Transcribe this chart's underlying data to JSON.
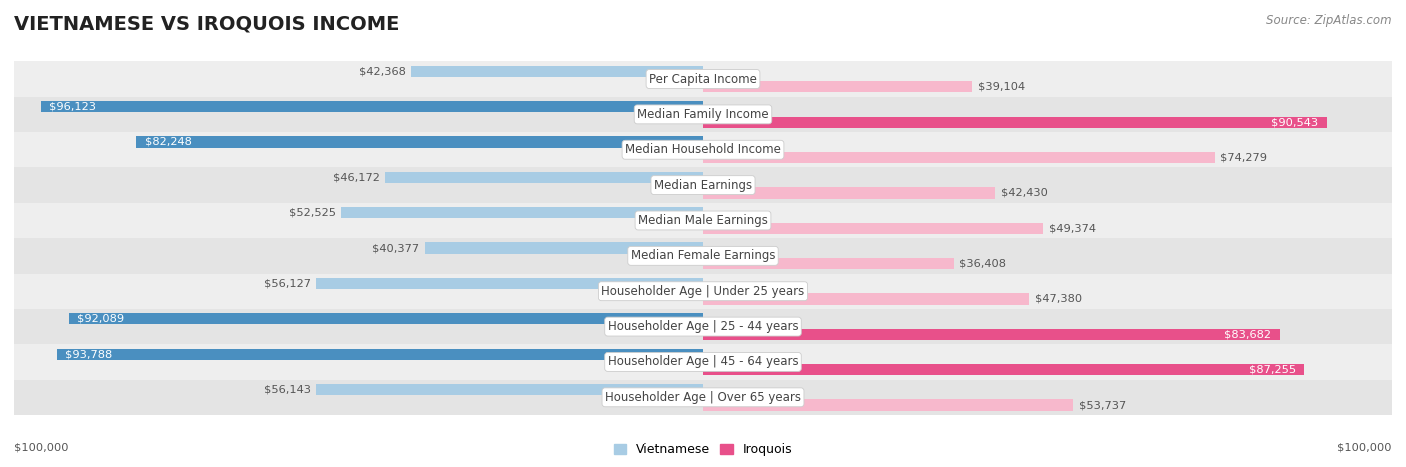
{
  "title": "VIETNAMESE VS IROQUOIS INCOME",
  "source": "Source: ZipAtlas.com",
  "categories": [
    "Per Capita Income",
    "Median Family Income",
    "Median Household Income",
    "Median Earnings",
    "Median Male Earnings",
    "Median Female Earnings",
    "Householder Age | Under 25 years",
    "Householder Age | 25 - 44 years",
    "Householder Age | 45 - 64 years",
    "Householder Age | Over 65 years"
  ],
  "vietnamese": [
    42368,
    96123,
    82248,
    46172,
    52525,
    40377,
    56127,
    92089,
    93788,
    56143
  ],
  "iroquois": [
    39104,
    90543,
    74279,
    42430,
    49374,
    36408,
    47380,
    83682,
    87255,
    53737
  ],
  "max_value": 100000,
  "viet_color_light": "#a8cce4",
  "viet_color_dark": "#4a8fc0",
  "iroq_color_light": "#f7b8cc",
  "iroq_color_dark": "#e8508a",
  "row_color_odd": "#eeeeee",
  "row_color_even": "#e4e4e4",
  "xlabel_left": "$100,000",
  "xlabel_right": "$100,000",
  "legend_vietnamese": "Vietnamese",
  "legend_iroquois": "Iroquois",
  "title_fontsize": 14,
  "cat_fontsize": 8.5,
  "val_fontsize": 8.2,
  "source_fontsize": 8.5,
  "legend_fontsize": 9
}
